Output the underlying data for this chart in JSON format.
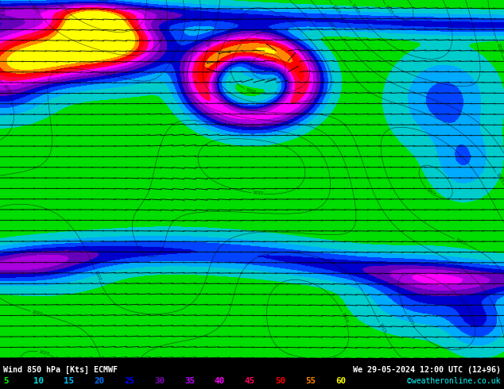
{
  "title_left": "Wind 850 hPa [Kts] ECMWF",
  "title_right": "We 29-05-2024 12:00 UTC (12+96)",
  "watermark": "©weatheronline.co.uk",
  "legend_values": [
    5,
    10,
    15,
    20,
    25,
    30,
    35,
    40,
    45,
    50,
    55,
    60
  ],
  "legend_colors": [
    "#00ff00",
    "#00e0e0",
    "#00bfff",
    "#0070ff",
    "#0000ff",
    "#8000c0",
    "#c000ff",
    "#ff00ff",
    "#ff0060",
    "#ff0000",
    "#ff8000",
    "#ffff00"
  ],
  "figsize": [
    6.34,
    4.9
  ],
  "dpi": 100,
  "map_bg": "#f0f0f0"
}
